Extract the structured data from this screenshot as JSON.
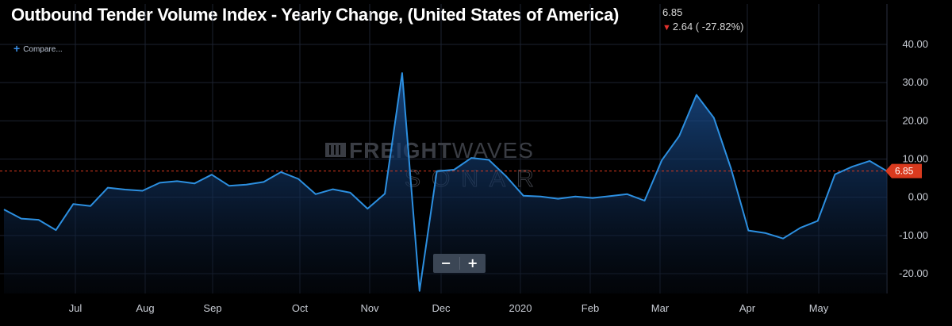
{
  "header": {
    "title": "Outbound Tender Volume Index - Yearly Change, (United States of America)",
    "last_value": "6.85",
    "change": "2.64 ( -27.82%)",
    "compare_label": "Compare..."
  },
  "watermark": {
    "line1_bold": "FREIGHT",
    "line1_light": "WAVES",
    "line2": "SONAR"
  },
  "zoom": {
    "minus": "−",
    "plus": "+"
  },
  "colors": {
    "line": "#2c8fe0",
    "current_marker": "#d93a1e",
    "grid": "#1c2230",
    "background": "#000000"
  },
  "chart_data": {
    "type": "area",
    "y_ticks": [
      "40.00",
      "30.00",
      "20.00",
      "10.00",
      "0.00",
      "-10.00",
      "-20.00"
    ],
    "y_tick_values": [
      40,
      30,
      20,
      10,
      0,
      -10,
      -20
    ],
    "ylim": [
      -25,
      45
    ],
    "x_labels": [
      "Jul",
      "Aug",
      "Sep",
      "Oct",
      "Nov",
      "Dec",
      "2020",
      "Feb",
      "Mar",
      "Apr",
      "May"
    ],
    "current_value": 6.85,
    "current_label": "6.85",
    "values": [
      -3.2,
      -5.6,
      -5.9,
      -8.6,
      -1.8,
      -2.3,
      2.5,
      2.0,
      1.7,
      3.8,
      4.2,
      3.6,
      5.9,
      3.0,
      3.3,
      4.0,
      6.6,
      4.8,
      0.8,
      2.1,
      1.2,
      -3.0,
      0.9,
      32.5,
      -24.5,
      6.8,
      7.2,
      10.3,
      9.8,
      5.5,
      0.4,
      0.2,
      -0.4,
      0.2,
      -0.2,
      0.3,
      0.8,
      -0.9,
      9.7,
      16.0,
      26.8,
      20.8,
      7.4,
      -8.7,
      -9.4,
      -10.8,
      -8.0,
      -6.2,
      6.0,
      8.0,
      9.5,
      6.85
    ]
  }
}
